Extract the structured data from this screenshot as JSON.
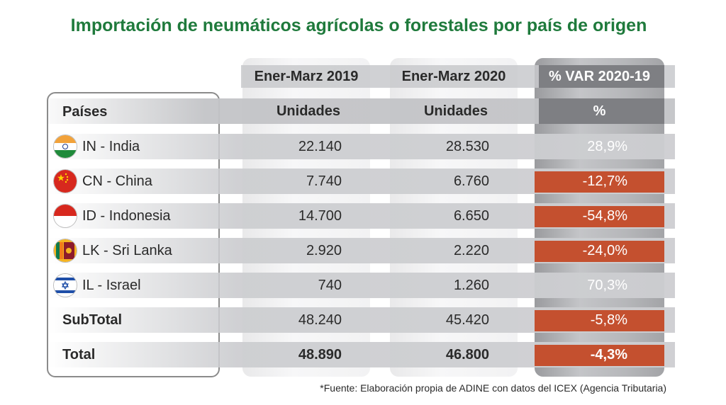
{
  "title": "Importación de neumáticos agrícolas o forestales por país de origen",
  "headers": {
    "period_2019": "Ener-Marz 2019",
    "period_2020": "Ener-Marz 2020",
    "var_title": "% VAR 2020-19",
    "countries": "Países",
    "units_2019": "Unidades",
    "units_2020": "Unidades",
    "pct": "%"
  },
  "rows": [
    {
      "country": "IN - India",
      "flag": "india-flag-icon",
      "v2019": "22.140",
      "v2020": "28.530",
      "var": "28,9%",
      "negative": false
    },
    {
      "country": "CN - China",
      "flag": "china-flag-icon",
      "v2019": "7.740",
      "v2020": "6.760",
      "var": "-12,7%",
      "negative": true
    },
    {
      "country": "ID - Indonesia",
      "flag": "indonesia-flag-icon",
      "v2019": "14.700",
      "v2020": "6.650",
      "var": "-54,8%",
      "negative": true
    },
    {
      "country": "LK - Sri Lanka",
      "flag": "sri-lanka-flag-icon",
      "v2019": "2.920",
      "v2020": "2.220",
      "var": "-24,0%",
      "negative": true
    },
    {
      "country": "IL - Israel",
      "flag": "israel-flag-icon",
      "v2019": "740",
      "v2020": "1.260",
      "var": "70,3%",
      "negative": false
    }
  ],
  "subtotal": {
    "label": "SubTotal",
    "v2019": "48.240",
    "v2020": "45.420",
    "var": "-5,8%"
  },
  "total": {
    "label": "Total",
    "v2019": "48.890",
    "v2020": "46.800",
    "var": "-4,3%"
  },
  "footnote": "*Fuente: Elaboración propia de ADINE con datos del ICEX (Agencia Tributaria)",
  "colors": {
    "title": "#1f7a3c",
    "negative": "#c4502f",
    "var_column": "#a3a4a7"
  }
}
